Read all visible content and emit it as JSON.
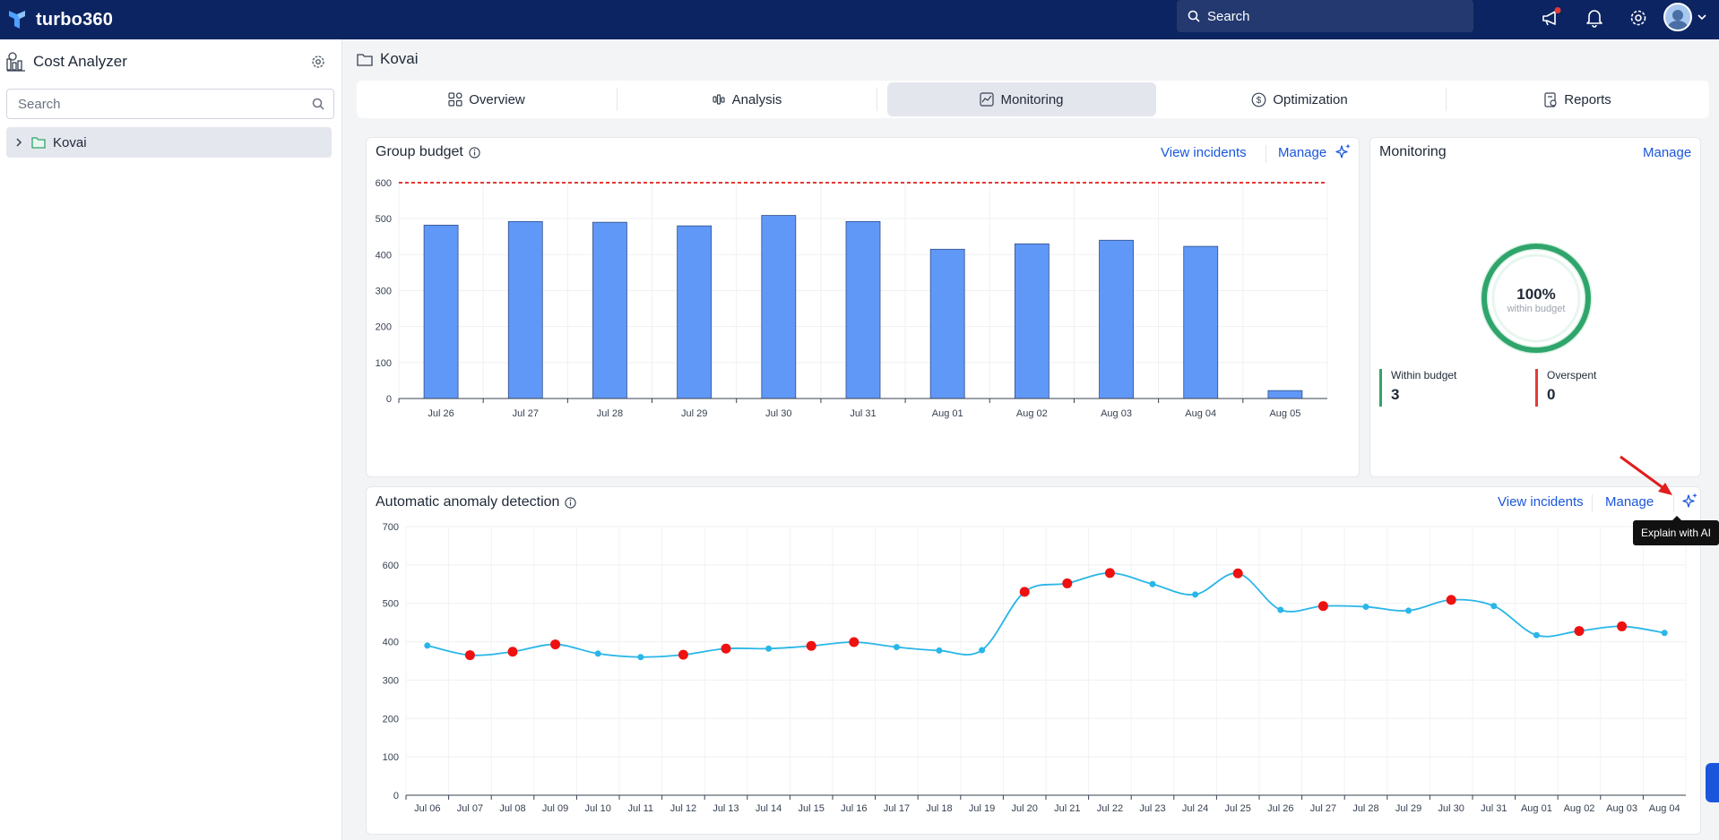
{
  "app": {
    "name": "turbo360"
  },
  "topbar": {
    "search_label": "Search",
    "icons": [
      "announcement-icon",
      "bell-icon",
      "gear-icon",
      "avatar-icon",
      "chevron-down-icon"
    ],
    "notification_dot_color": "#e53935"
  },
  "sidebar": {
    "title": "Cost Analyzer",
    "search_placeholder": "Search",
    "tree": [
      {
        "label": "Kovai",
        "expanded": false
      }
    ]
  },
  "breadcrumb": {
    "label": "Kovai"
  },
  "tabs": [
    {
      "label": "Overview",
      "icon": "grid-icon",
      "active": false
    },
    {
      "label": "Analysis",
      "icon": "analysis-icon",
      "active": false
    },
    {
      "label": "Monitoring",
      "icon": "monitoring-icon",
      "active": true
    },
    {
      "label": "Optimization",
      "icon": "dollar-icon",
      "active": false
    },
    {
      "label": "Reports",
      "icon": "report-icon",
      "active": false
    }
  ],
  "group_budget": {
    "title": "Group budget",
    "view_incidents": "View incidents",
    "manage": "Manage"
  },
  "monitoring": {
    "title": "Monitoring",
    "manage": "Manage",
    "percent": "100%",
    "percent_value": 100,
    "subtitle": "within budget",
    "within_label": "Within budget",
    "within_value": "3",
    "overspent_label": "Overspent",
    "overspent_value": "0",
    "colors": {
      "within": "#2fa56b",
      "overspent": "#e53935"
    }
  },
  "anomaly": {
    "title": "Automatic anomaly detection",
    "view_incidents": "View incidents",
    "manage": "Manage",
    "tooltip": "Explain with AI"
  },
  "chart_data": [
    {
      "type": "bar",
      "categories": [
        "Jul 26",
        "Jul 27",
        "Jul 28",
        "Jul 29",
        "Jul 30",
        "Jul 31",
        "Aug 01",
        "Aug 02",
        "Aug 03",
        "Aug 04",
        "Aug 05"
      ],
      "values": [
        482,
        492,
        490,
        480,
        509,
        492,
        415,
        430,
        440,
        423,
        22
      ],
      "budget_line": 600,
      "ylim": [
        0,
        600
      ],
      "yticks": [
        0,
        100,
        200,
        300,
        400,
        500,
        600
      ],
      "bar_color": "#6098f8",
      "budget_line_color": "#e53935",
      "grid": true
    },
    {
      "type": "line",
      "categories": [
        "Jul 06",
        "Jul 07",
        "Jul 08",
        "Jul 09",
        "Jul 10",
        "Jul 11",
        "Jul 12",
        "Jul 13",
        "Jul 14",
        "Jul 15",
        "Jul 16",
        "Jul 17",
        "Jul 18",
        "Jul 19",
        "Jul 20",
        "Jul 21",
        "Jul 22",
        "Jul 23",
        "Jul 24",
        "Jul 25",
        "Jul 26",
        "Jul 27",
        "Jul 28",
        "Jul 29",
        "Jul 30",
        "Jul 31",
        "Aug 01",
        "Aug 02",
        "Aug 03",
        "Aug 04"
      ],
      "values": [
        390,
        365,
        374,
        393,
        369,
        360,
        366,
        382,
        382,
        389,
        399,
        386,
        377,
        378,
        530,
        552,
        579,
        550,
        523,
        578,
        483,
        493,
        491,
        481,
        509,
        493,
        417,
        428,
        440,
        423
      ],
      "anomalies": [
        false,
        true,
        true,
        true,
        false,
        false,
        true,
        true,
        false,
        true,
        true,
        false,
        false,
        false,
        true,
        true,
        true,
        false,
        false,
        true,
        false,
        true,
        false,
        false,
        true,
        false,
        false,
        true,
        true,
        false
      ],
      "ylim": [
        0,
        700
      ],
      "yticks": [
        0,
        100,
        200,
        300,
        400,
        500,
        600,
        700
      ],
      "line_color": "#29b6e8",
      "anomaly_color": "#ee1111",
      "grid": true
    }
  ]
}
